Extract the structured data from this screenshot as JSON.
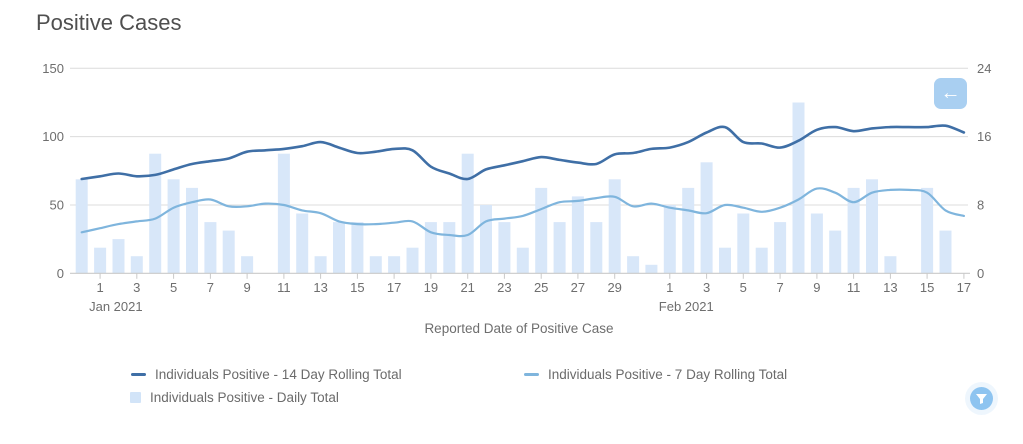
{
  "title": "Positive Cases",
  "controls": {
    "back_button": {
      "icon": "arrow-left-icon",
      "glyph": "←",
      "color": "#a9cff1"
    },
    "filter_button": {
      "icon": "funnel-icon",
      "color": "#8ec4f0"
    }
  },
  "legend": {
    "items": [
      {
        "label": "Individuals Positive - 14 Day Rolling Total",
        "marker": "line",
        "color": "#3f6fa6"
      },
      {
        "label": "Individuals Positive - 7 Day Rolling Total",
        "marker": "line",
        "color": "#7fb5dd"
      },
      {
        "label": "Individuals Positive - Daily Total",
        "marker": "square",
        "color": "#d2e4f8"
      }
    ]
  },
  "chart_data": {
    "type": "mixed",
    "title": "Positive Cases",
    "xlabel": "Reported Date of Positive Case",
    "grid": "horizontal",
    "left_axis": {
      "ticks": [
        0,
        50,
        100,
        150
      ],
      "max": 150
    },
    "right_axis": {
      "ticks": [
        0,
        8,
        16,
        24
      ],
      "max": 24
    },
    "x_dates": [
      "2020-12-31",
      "2021-01-01",
      "2021-01-02",
      "2021-01-03",
      "2021-01-04",
      "2021-01-05",
      "2021-01-06",
      "2021-01-07",
      "2021-01-08",
      "2021-01-09",
      "2021-01-10",
      "2021-01-11",
      "2021-01-12",
      "2021-01-13",
      "2021-01-14",
      "2021-01-15",
      "2021-01-16",
      "2021-01-17",
      "2021-01-18",
      "2021-01-19",
      "2021-01-20",
      "2021-01-21",
      "2021-01-22",
      "2021-01-23",
      "2021-01-24",
      "2021-01-25",
      "2021-01-26",
      "2021-01-27",
      "2021-01-28",
      "2021-01-29",
      "2021-01-30",
      "2021-01-31",
      "2021-02-01",
      "2021-02-02",
      "2021-02-03",
      "2021-02-04",
      "2021-02-05",
      "2021-02-06",
      "2021-02-07",
      "2021-02-08",
      "2021-02-09",
      "2021-02-10",
      "2021-02-11",
      "2021-02-12",
      "2021-02-13",
      "2021-02-14",
      "2021-02-15",
      "2021-02-16",
      "2021-02-17"
    ],
    "x_ticks": [
      {
        "i": 1,
        "label": "1",
        "sub": "Jan 2021"
      },
      {
        "i": 3,
        "label": "3"
      },
      {
        "i": 5,
        "label": "5"
      },
      {
        "i": 7,
        "label": "7"
      },
      {
        "i": 9,
        "label": "9"
      },
      {
        "i": 11,
        "label": "11"
      },
      {
        "i": 13,
        "label": "13"
      },
      {
        "i": 15,
        "label": "15"
      },
      {
        "i": 17,
        "label": "17"
      },
      {
        "i": 19,
        "label": "19"
      },
      {
        "i": 21,
        "label": "21"
      },
      {
        "i": 23,
        "label": "23"
      },
      {
        "i": 25,
        "label": "25"
      },
      {
        "i": 27,
        "label": "27"
      },
      {
        "i": 29,
        "label": "29"
      },
      {
        "i": 32,
        "label": "1",
        "sub": "Feb 2021"
      },
      {
        "i": 34,
        "label": "3"
      },
      {
        "i": 36,
        "label": "5"
      },
      {
        "i": 38,
        "label": "7"
      },
      {
        "i": 40,
        "label": "9"
      },
      {
        "i": 42,
        "label": "11"
      },
      {
        "i": 44,
        "label": "13"
      },
      {
        "i": 46,
        "label": "15"
      },
      {
        "i": 48,
        "label": "17"
      }
    ],
    "series": [
      {
        "name": "Individuals Positive - 14 Day Rolling Total",
        "type": "line",
        "axis": "left",
        "color": "#3f6fa6",
        "values": [
          69,
          71,
          73,
          71,
          72,
          76,
          80,
          82,
          84,
          89,
          90,
          91,
          93,
          96,
          92,
          88,
          89,
          91,
          90,
          78,
          73,
          69,
          76,
          79,
          82,
          85,
          83,
          81,
          80,
          87,
          88,
          91,
          92,
          96,
          103,
          107,
          96,
          95,
          92,
          97,
          105,
          107,
          104,
          106,
          107,
          107,
          107,
          108,
          103
        ]
      },
      {
        "name": "Individuals Positive - 7 Day Rolling Total",
        "type": "line",
        "axis": "left",
        "color": "#7fb5dd",
        "values": [
          30,
          33,
          36,
          38,
          40,
          48,
          52,
          54,
          49,
          49,
          51,
          50,
          46,
          44,
          38,
          36,
          36,
          37,
          38,
          30,
          28,
          28,
          38,
          40,
          42,
          47,
          52,
          53,
          55,
          56,
          49,
          51,
          48,
          46,
          44,
          50,
          48,
          45,
          48,
          54,
          62,
          59,
          52,
          59,
          61,
          61,
          59,
          46,
          42
        ]
      },
      {
        "name": "Individuals Positive - Daily Total",
        "type": "bar",
        "axis": "right",
        "color": "#d8e7f9",
        "values": [
          11,
          3,
          4,
          2,
          14,
          11,
          10,
          6,
          5,
          2,
          0,
          14,
          7,
          2,
          6,
          6,
          2,
          2,
          3,
          6,
          6,
          14,
          8,
          6,
          3,
          10,
          6,
          9,
          6,
          11,
          2,
          1,
          8,
          10,
          13,
          3,
          7,
          3,
          6,
          20,
          7,
          5,
          10,
          11,
          2,
          0,
          10,
          5,
          0
        ]
      }
    ]
  }
}
